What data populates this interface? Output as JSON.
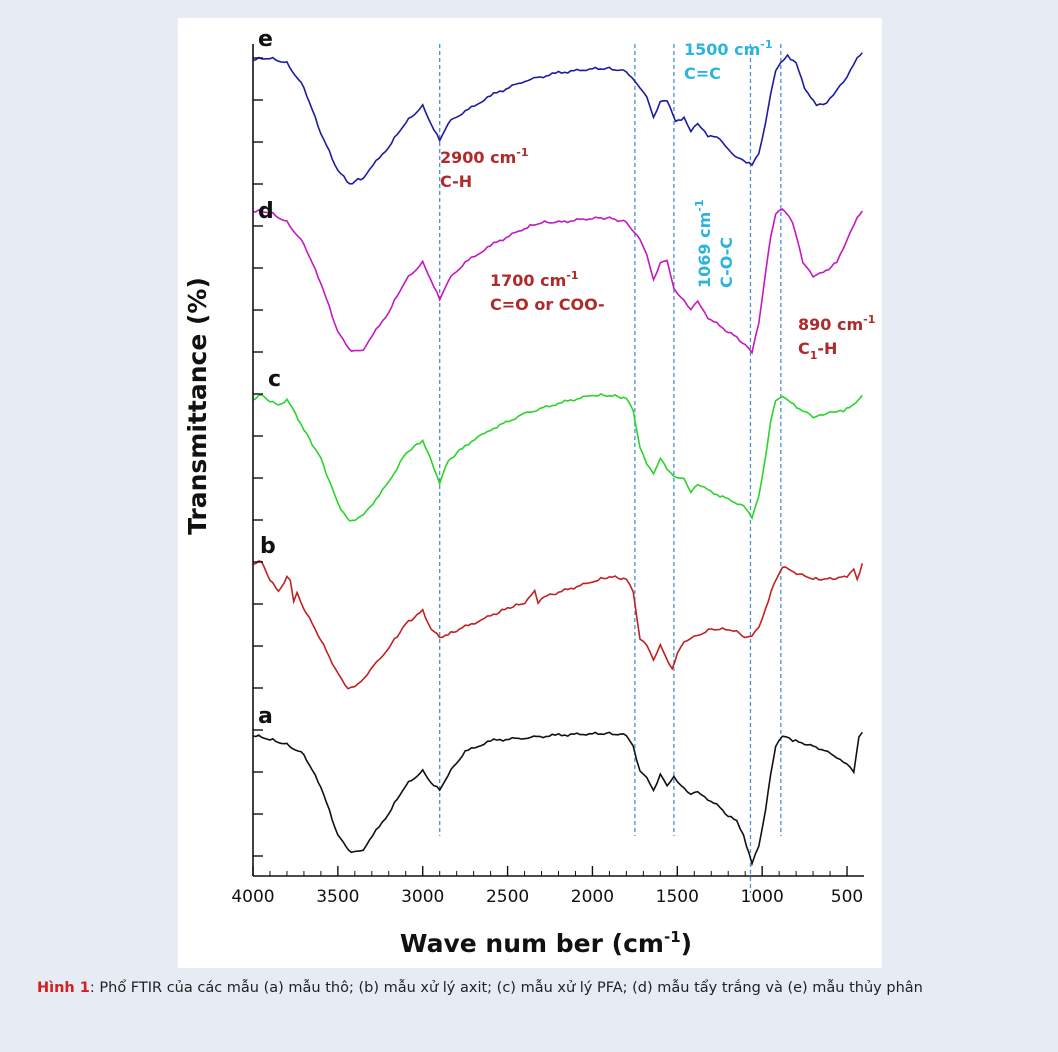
{
  "caption": {
    "label": "Hình 1",
    "text": ": Phổ FTIR của các mẫu (a) mẫu thô; (b) mẫu xử lý axit; (c) mẫu xử lý PFA; (d) mẫu tẩy trắng và (e) mẫu thủy phân"
  },
  "colors": {
    "page_background": "#e6ebf4",
    "panel_background": "#ffffff",
    "caption_label": "#d21f1f",
    "guide_line": "#4a8fd0",
    "annotation_red": "#b02a2a",
    "annotation_cyan": "#2bb5de"
  },
  "chart_data": {
    "type": "line",
    "title": "",
    "xlabel": "Wave num ber (cm",
    "xlabel_superscript": "-1",
    "xlabel_suffix": ")",
    "ylabel": "Transmittance (%)",
    "xlim": [
      4000,
      400
    ],
    "x_reversed": true,
    "x_ticks": [
      4000,
      3500,
      3000,
      2500,
      2000,
      1500,
      1000,
      500
    ],
    "y_tick_labels": "none",
    "grid": false,
    "series": [
      {
        "name": "e",
        "color": "#1c1ca0",
        "points": [
          [
            4000,
            0.93
          ],
          [
            3900,
            0.94
          ],
          [
            3800,
            0.9
          ],
          [
            3700,
            0.72
          ],
          [
            3600,
            0.38
          ],
          [
            3500,
            0.1
          ],
          [
            3430,
            0.0
          ],
          [
            3350,
            0.05
          ],
          [
            3200,
            0.28
          ],
          [
            3100,
            0.46
          ],
          [
            3000,
            0.58
          ],
          [
            2950,
            0.45
          ],
          [
            2900,
            0.32
          ],
          [
            2850,
            0.46
          ],
          [
            2750,
            0.54
          ],
          [
            2600,
            0.66
          ],
          [
            2400,
            0.77
          ],
          [
            2200,
            0.83
          ],
          [
            2000,
            0.86
          ],
          [
            1900,
            0.86
          ],
          [
            1800,
            0.84
          ],
          [
            1720,
            0.72
          ],
          [
            1680,
            0.66
          ],
          [
            1640,
            0.5
          ],
          [
            1600,
            0.62
          ],
          [
            1560,
            0.63
          ],
          [
            1510,
            0.46
          ],
          [
            1460,
            0.5
          ],
          [
            1420,
            0.4
          ],
          [
            1380,
            0.46
          ],
          [
            1320,
            0.36
          ],
          [
            1250,
            0.34
          ],
          [
            1200,
            0.26
          ],
          [
            1160,
            0.2
          ],
          [
            1110,
            0.18
          ],
          [
            1060,
            0.14
          ],
          [
            1020,
            0.22
          ],
          [
            980,
            0.45
          ],
          [
            950,
            0.68
          ],
          [
            920,
            0.84
          ],
          [
            890,
            0.91
          ],
          [
            850,
            0.96
          ],
          [
            800,
            0.9
          ],
          [
            750,
            0.72
          ],
          [
            680,
            0.58
          ],
          [
            620,
            0.6
          ],
          [
            560,
            0.7
          ],
          [
            500,
            0.8
          ],
          [
            440,
            0.95
          ],
          [
            410,
            0.98
          ]
        ]
      },
      {
        "name": "d",
        "color": "#c21ac2",
        "points": [
          [
            4000,
            0.98
          ],
          [
            3900,
            0.97
          ],
          [
            3800,
            0.9
          ],
          [
            3700,
            0.75
          ],
          [
            3600,
            0.48
          ],
          [
            3500,
            0.14
          ],
          [
            3420,
            0.0
          ],
          [
            3350,
            0.02
          ],
          [
            3200,
            0.28
          ],
          [
            3100,
            0.5
          ],
          [
            3000,
            0.62
          ],
          [
            2950,
            0.5
          ],
          [
            2900,
            0.36
          ],
          [
            2850,
            0.5
          ],
          [
            2750,
            0.62
          ],
          [
            2600,
            0.74
          ],
          [
            2400,
            0.86
          ],
          [
            2300,
            0.9
          ],
          [
            2200,
            0.9
          ],
          [
            2000,
            0.93
          ],
          [
            1900,
            0.93
          ],
          [
            1800,
            0.9
          ],
          [
            1720,
            0.78
          ],
          [
            1680,
            0.68
          ],
          [
            1640,
            0.5
          ],
          [
            1600,
            0.62
          ],
          [
            1560,
            0.64
          ],
          [
            1520,
            0.44
          ],
          [
            1460,
            0.36
          ],
          [
            1420,
            0.3
          ],
          [
            1380,
            0.36
          ],
          [
            1320,
            0.24
          ],
          [
            1250,
            0.18
          ],
          [
            1200,
            0.14
          ],
          [
            1150,
            0.1
          ],
          [
            1100,
            0.05
          ],
          [
            1060,
            0.0
          ],
          [
            1020,
            0.2
          ],
          [
            980,
            0.55
          ],
          [
            950,
            0.8
          ],
          [
            920,
            0.96
          ],
          [
            880,
            1.0
          ],
          [
            820,
            0.9
          ],
          [
            760,
            0.62
          ],
          [
            700,
            0.52
          ],
          [
            640,
            0.55
          ],
          [
            560,
            0.62
          ],
          [
            500,
            0.78
          ],
          [
            440,
            0.94
          ],
          [
            410,
            0.98
          ]
        ]
      },
      {
        "name": "c",
        "color": "#2bd42b",
        "points": [
          [
            4000,
            0.93
          ],
          [
            3950,
            0.96
          ],
          [
            3900,
            0.92
          ],
          [
            3850,
            0.88
          ],
          [
            3800,
            0.93
          ],
          [
            3750,
            0.82
          ],
          [
            3700,
            0.7
          ],
          [
            3600,
            0.48
          ],
          [
            3500,
            0.14
          ],
          [
            3430,
            0.0
          ],
          [
            3350,
            0.05
          ],
          [
            3200,
            0.3
          ],
          [
            3100,
            0.52
          ],
          [
            3000,
            0.62
          ],
          [
            2950,
            0.46
          ],
          [
            2900,
            0.3
          ],
          [
            2850,
            0.46
          ],
          [
            2750,
            0.58
          ],
          [
            2600,
            0.7
          ],
          [
            2400,
            0.82
          ],
          [
            2200,
            0.9
          ],
          [
            2000,
            0.96
          ],
          [
            1900,
            0.96
          ],
          [
            1800,
            0.94
          ],
          [
            1760,
            0.84
          ],
          [
            1720,
            0.56
          ],
          [
            1680,
            0.44
          ],
          [
            1640,
            0.36
          ],
          [
            1600,
            0.48
          ],
          [
            1560,
            0.4
          ],
          [
            1520,
            0.34
          ],
          [
            1460,
            0.32
          ],
          [
            1420,
            0.22
          ],
          [
            1380,
            0.28
          ],
          [
            1320,
            0.24
          ],
          [
            1250,
            0.2
          ],
          [
            1180,
            0.16
          ],
          [
            1110,
            0.12
          ],
          [
            1060,
            0.04
          ],
          [
            1020,
            0.2
          ],
          [
            980,
            0.5
          ],
          [
            950,
            0.76
          ],
          [
            920,
            0.92
          ],
          [
            880,
            0.96
          ],
          [
            830,
            0.9
          ],
          [
            780,
            0.86
          ],
          [
            740,
            0.84
          ],
          [
            700,
            0.8
          ],
          [
            640,
            0.82
          ],
          [
            580,
            0.84
          ],
          [
            520,
            0.84
          ],
          [
            470,
            0.88
          ],
          [
            410,
            0.96
          ]
        ]
      },
      {
        "name": "b",
        "color": "#c0221f",
        "points": [
          [
            4000,
            0.96
          ],
          [
            3950,
            0.97
          ],
          [
            3900,
            0.84
          ],
          [
            3850,
            0.74
          ],
          [
            3800,
            0.86
          ],
          [
            3780,
            0.84
          ],
          [
            3760,
            0.68
          ],
          [
            3740,
            0.74
          ],
          [
            3700,
            0.62
          ],
          [
            3600,
            0.38
          ],
          [
            3500,
            0.12
          ],
          [
            3440,
            0.0
          ],
          [
            3380,
            0.04
          ],
          [
            3200,
            0.32
          ],
          [
            3100,
            0.5
          ],
          [
            3000,
            0.6
          ],
          [
            2950,
            0.46
          ],
          [
            2900,
            0.4
          ],
          [
            2850,
            0.42
          ],
          [
            2750,
            0.48
          ],
          [
            2600,
            0.56
          ],
          [
            2500,
            0.62
          ],
          [
            2400,
            0.66
          ],
          [
            2340,
            0.76
          ],
          [
            2320,
            0.66
          ],
          [
            2300,
            0.7
          ],
          [
            2200,
            0.74
          ],
          [
            2000,
            0.82
          ],
          [
            1900,
            0.86
          ],
          [
            1800,
            0.84
          ],
          [
            1760,
            0.74
          ],
          [
            1720,
            0.38
          ],
          [
            1680,
            0.34
          ],
          [
            1640,
            0.22
          ],
          [
            1600,
            0.34
          ],
          [
            1570,
            0.26
          ],
          [
            1530,
            0.16
          ],
          [
            1500,
            0.28
          ],
          [
            1460,
            0.36
          ],
          [
            1400,
            0.4
          ],
          [
            1300,
            0.46
          ],
          [
            1200,
            0.46
          ],
          [
            1150,
            0.44
          ],
          [
            1100,
            0.4
          ],
          [
            1060,
            0.42
          ],
          [
            1020,
            0.48
          ],
          [
            980,
            0.62
          ],
          [
            930,
            0.8
          ],
          [
            880,
            0.94
          ],
          [
            830,
            0.9
          ],
          [
            780,
            0.88
          ],
          [
            700,
            0.84
          ],
          [
            600,
            0.84
          ],
          [
            500,
            0.86
          ],
          [
            460,
            0.92
          ],
          [
            440,
            0.84
          ],
          [
            410,
            0.96
          ]
        ]
      },
      {
        "name": "a",
        "color": "#111111",
        "points": [
          [
            4000,
            0.92
          ],
          [
            3900,
            0.89
          ],
          [
            3800,
            0.85
          ],
          [
            3700,
            0.78
          ],
          [
            3600,
            0.55
          ],
          [
            3500,
            0.2
          ],
          [
            3420,
            0.07
          ],
          [
            3350,
            0.1
          ],
          [
            3200,
            0.36
          ],
          [
            3100,
            0.56
          ],
          [
            3000,
            0.66
          ],
          [
            2950,
            0.58
          ],
          [
            2900,
            0.52
          ],
          [
            2850,
            0.64
          ],
          [
            2750,
            0.8
          ],
          [
            2600,
            0.88
          ],
          [
            2400,
            0.9
          ],
          [
            2200,
            0.92
          ],
          [
            2000,
            0.93
          ],
          [
            1900,
            0.93
          ],
          [
            1800,
            0.92
          ],
          [
            1760,
            0.84
          ],
          [
            1720,
            0.66
          ],
          [
            1680,
            0.62
          ],
          [
            1640,
            0.52
          ],
          [
            1600,
            0.64
          ],
          [
            1560,
            0.56
          ],
          [
            1520,
            0.62
          ],
          [
            1460,
            0.54
          ],
          [
            1420,
            0.5
          ],
          [
            1380,
            0.52
          ],
          [
            1320,
            0.46
          ],
          [
            1250,
            0.4
          ],
          [
            1200,
            0.34
          ],
          [
            1150,
            0.3
          ],
          [
            1110,
            0.2
          ],
          [
            1060,
            0.0
          ],
          [
            1020,
            0.12
          ],
          [
            980,
            0.38
          ],
          [
            950,
            0.64
          ],
          [
            920,
            0.84
          ],
          [
            880,
            0.92
          ],
          [
            820,
            0.88
          ],
          [
            750,
            0.86
          ],
          [
            650,
            0.82
          ],
          [
            560,
            0.76
          ],
          [
            500,
            0.72
          ],
          [
            460,
            0.66
          ],
          [
            430,
            0.9
          ],
          [
            410,
            0.94
          ]
        ]
      }
    ],
    "guide_lines": [
      2900,
      1750,
      1520,
      1069,
      890
    ],
    "annotations": [
      {
        "id": "ann-2900",
        "line1": "2900 cm",
        "sup": "-1",
        "line2": "C-H",
        "color": "red"
      },
      {
        "id": "ann-1700",
        "line1": "1700 cm",
        "sup": "-1",
        "line2": "C=O or COO-",
        "color": "red"
      },
      {
        "id": "ann-1500",
        "line1": "1500 cm",
        "sup": "-1",
        "line2": "C=C",
        "color": "cyan"
      },
      {
        "id": "ann-1069",
        "line1": "1069 cm",
        "sup": "-1",
        "line2": "C-O-C",
        "color": "cyan",
        "vertical": true
      },
      {
        "id": "ann-890",
        "line1": "890 cm",
        "sup": "-1",
        "line2": "C",
        "sub": "1",
        "line2_suffix": "-H",
        "color": "red"
      }
    ]
  }
}
